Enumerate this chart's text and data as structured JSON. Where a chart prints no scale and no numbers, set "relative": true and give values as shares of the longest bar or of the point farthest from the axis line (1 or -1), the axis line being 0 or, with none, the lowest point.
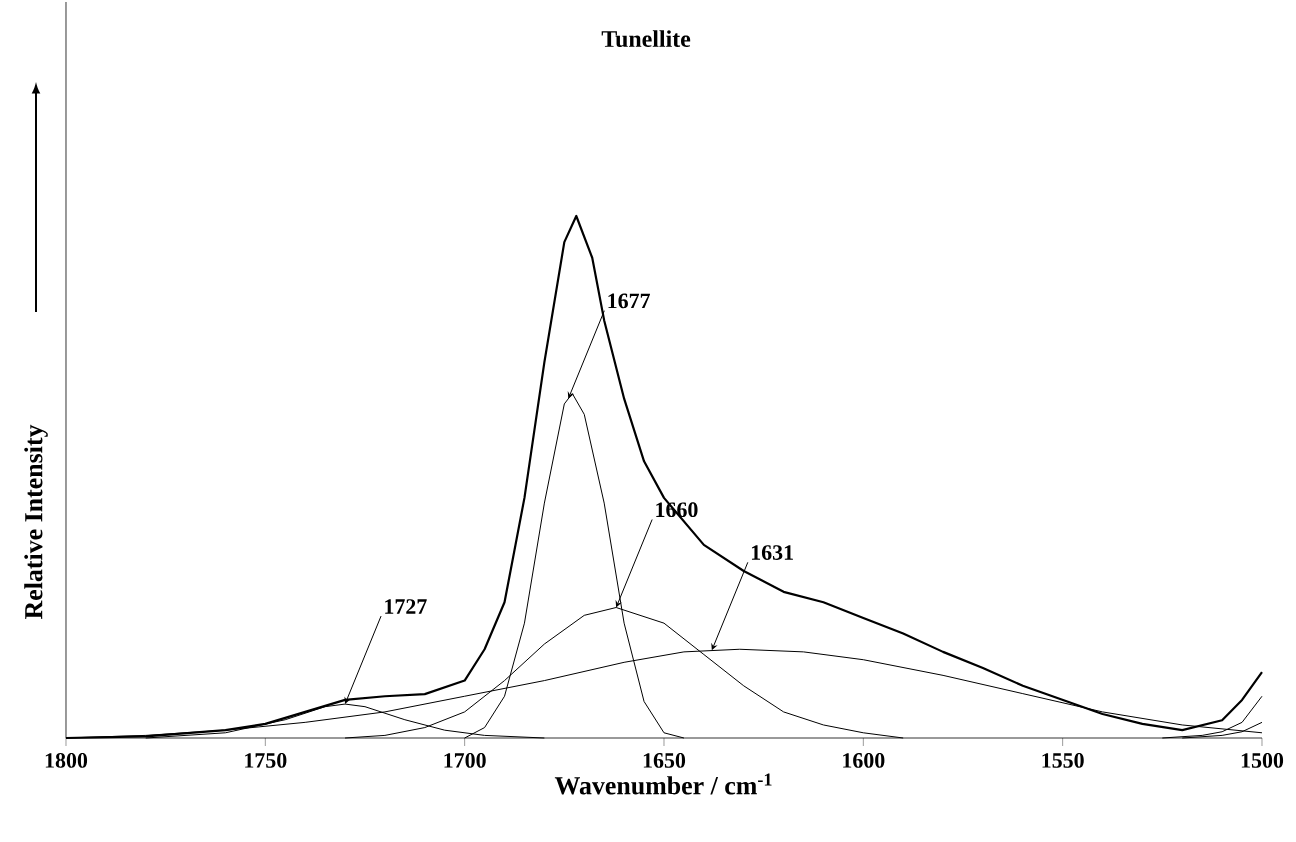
{
  "chart_data": {
    "type": "line",
    "title": "Tunellite",
    "xlabel": "Wavenumber / cm$^{-1}$",
    "ylabel": "Relative Intensity",
    "relative": true,
    "xlim": [
      1800,
      1500
    ],
    "xticks": [
      1800,
      1750,
      1700,
      1650,
      1600,
      1550,
      1500
    ],
    "series": [
      {
        "color": "#000000",
        "x": [
          1800,
          1780,
          1760,
          1750,
          1740,
          1730,
          1720,
          1710,
          1700,
          1695,
          1690,
          1685,
          1680,
          1675,
          1672,
          1668,
          1665,
          1660,
          1655,
          1650,
          1640,
          1630,
          1620,
          1610,
          1600,
          1590,
          1580,
          1570,
          1560,
          1550,
          1540,
          1530,
          1520,
          1510,
          1505,
          1500
        ],
        "values": [
          0,
          0.003,
          0.015,
          0.027,
          0.05,
          0.073,
          0.08,
          0.084,
          0.11,
          0.17,
          0.26,
          0.46,
          0.72,
          0.95,
          1,
          0.92,
          0.8,
          0.65,
          0.53,
          0.46,
          0.37,
          0.32,
          0.28,
          0.26,
          0.23,
          0.2,
          0.165,
          0.134,
          0.1,
          0.073,
          0.046,
          0.027,
          0.015,
          0.034,
          0.073,
          0.126
        ]
      },
      {
        "color": "#000000",
        "x": [
          1700,
          1695,
          1690,
          1685,
          1680,
          1675,
          1673,
          1670,
          1665,
          1660,
          1655,
          1650,
          1645
        ],
        "values": [
          0,
          0.02,
          0.08,
          0.22,
          0.45,
          0.64,
          0.66,
          0.62,
          0.45,
          0.22,
          0.07,
          0.01,
          0
        ]
      },
      {
        "color": "#000000",
        "x": [
          1730,
          1720,
          1710,
          1700,
          1690,
          1680,
          1670,
          1662,
          1650,
          1640,
          1630,
          1620,
          1610,
          1600,
          1590
        ],
        "values": [
          0,
          0.005,
          0.02,
          0.05,
          0.11,
          0.18,
          0.235,
          0.25,
          0.22,
          0.16,
          0.1,
          0.05,
          0.025,
          0.01,
          0
        ]
      },
      {
        "color": "#000000",
        "x": [
          1800,
          1780,
          1760,
          1740,
          1720,
          1700,
          1680,
          1660,
          1645,
          1631,
          1615,
          1600,
          1580,
          1560,
          1540,
          1520,
          1500
        ],
        "values": [
          0,
          0.005,
          0.015,
          0.03,
          0.05,
          0.08,
          0.11,
          0.145,
          0.165,
          0.17,
          0.165,
          0.15,
          0.12,
          0.085,
          0.05,
          0.025,
          0.01
        ]
      },
      {
        "color": "#000000",
        "x": [
          1780,
          1760,
          1745,
          1735,
          1730,
          1725,
          1715,
          1705,
          1695,
          1680
        ],
        "values": [
          0,
          0.01,
          0.035,
          0.06,
          0.065,
          0.06,
          0.035,
          0.015,
          0.005,
          0
        ]
      },
      {
        "color": "#000000",
        "x": [
          1525,
          1515,
          1510,
          1505,
          1500
        ],
        "values": [
          0,
          0.005,
          0.012,
          0.03,
          0.08
        ]
      },
      {
        "color": "#000000",
        "x": [
          1520,
          1510,
          1505,
          1500
        ],
        "values": [
          0,
          0.005,
          0.012,
          0.03
        ]
      }
    ],
    "annotations": [
      {
        "text": "1727",
        "x": 1730,
        "y": 0.065
      },
      {
        "text": "1677",
        "x": 1674,
        "y": 0.65
      },
      {
        "text": "1660",
        "x": 1662,
        "y": 0.25
      },
      {
        "text": "1631",
        "x": 1638,
        "y": 0.168
      }
    ]
  }
}
